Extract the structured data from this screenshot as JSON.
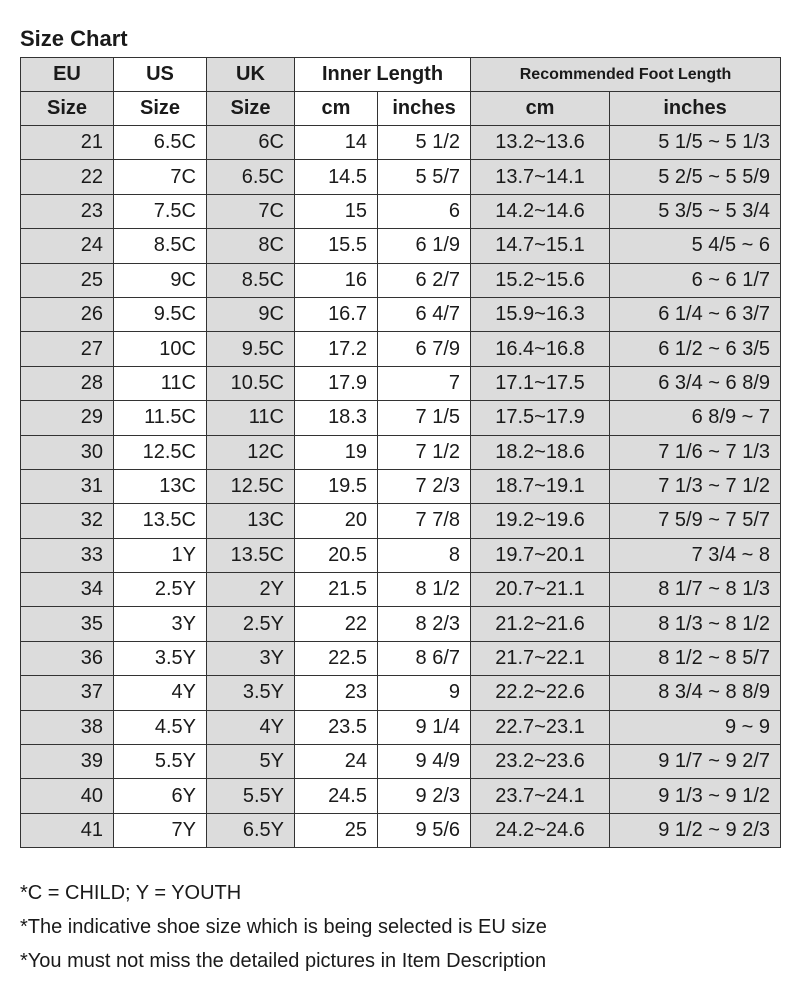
{
  "title": "Size Chart",
  "headers": {
    "eu": "EU",
    "us": "US",
    "uk": "UK",
    "size": "Size",
    "inner": "Inner Length",
    "recommended": "Recommended Foot Length",
    "cm": "cm",
    "inches": "inches"
  },
  "colors": {
    "shade": "#dcdcdc",
    "border": "#333333"
  },
  "rows": [
    [
      "21",
      "6.5C",
      "6C",
      "14",
      "5 1/2",
      "13.2~13.6",
      "5 1/5 ~ 5 1/3"
    ],
    [
      "22",
      "7C",
      "6.5C",
      "14.5",
      "5 5/7",
      "13.7~14.1",
      "5 2/5 ~ 5 5/9"
    ],
    [
      "23",
      "7.5C",
      "7C",
      "15",
      "6",
      "14.2~14.6",
      "5 3/5 ~ 5 3/4"
    ],
    [
      "24",
      "8.5C",
      "8C",
      "15.5",
      "6 1/9",
      "14.7~15.1",
      "5 4/5 ~ 6"
    ],
    [
      "25",
      "9C",
      "8.5C",
      "16",
      "6 2/7",
      "15.2~15.6",
      "6 ~ 6 1/7"
    ],
    [
      "26",
      "9.5C",
      "9C",
      "16.7",
      "6 4/7",
      "15.9~16.3",
      "6 1/4 ~ 6 3/7"
    ],
    [
      "27",
      "10C",
      "9.5C",
      "17.2",
      "6 7/9",
      "16.4~16.8",
      "6 1/2 ~ 6 3/5"
    ],
    [
      "28",
      "11C",
      "10.5C",
      "17.9",
      "7",
      "17.1~17.5",
      "6 3/4 ~ 6 8/9"
    ],
    [
      "29",
      "11.5C",
      "11C",
      "18.3",
      "7 1/5",
      "17.5~17.9",
      "6 8/9 ~ 7"
    ],
    [
      "30",
      "12.5C",
      "12C",
      "19",
      "7 1/2",
      "18.2~18.6",
      "7 1/6 ~ 7 1/3"
    ],
    [
      "31",
      "13C",
      "12.5C",
      "19.5",
      "7 2/3",
      "18.7~19.1",
      "7 1/3 ~ 7 1/2"
    ],
    [
      "32",
      "13.5C",
      "13C",
      "20",
      "7 7/8",
      "19.2~19.6",
      "7 5/9 ~ 7 5/7"
    ],
    [
      "33",
      "1Y",
      "13.5C",
      "20.5",
      "8",
      "19.7~20.1",
      "7 3/4 ~ 8"
    ],
    [
      "34",
      "2.5Y",
      "2Y",
      "21.5",
      "8 1/2",
      "20.7~21.1",
      "8 1/7 ~ 8 1/3"
    ],
    [
      "35",
      "3Y",
      "2.5Y",
      "22",
      "8 2/3",
      "21.2~21.6",
      "8 1/3 ~ 8 1/2"
    ],
    [
      "36",
      "3.5Y",
      "3Y",
      "22.5",
      "8 6/7",
      "21.7~22.1",
      "8 1/2 ~ 8 5/7"
    ],
    [
      "37",
      "4Y",
      "3.5Y",
      "23",
      "9",
      "22.2~22.6",
      "8 3/4 ~ 8 8/9"
    ],
    [
      "38",
      "4.5Y",
      "4Y",
      "23.5",
      "9 1/4",
      "22.7~23.1",
      "9 ~ 9"
    ],
    [
      "39",
      "5.5Y",
      "5Y",
      "24",
      "9 4/9",
      "23.2~23.6",
      "9 1/7 ~ 9 2/7"
    ],
    [
      "40",
      "6Y",
      "5.5Y",
      "24.5",
      "9 2/3",
      "23.7~24.1",
      "9 1/3 ~ 9 1/2"
    ],
    [
      "41",
      "7Y",
      "6.5Y",
      "25",
      "9 5/6",
      "24.2~24.6",
      "9 1/2 ~ 9 2/3"
    ]
  ],
  "notes": [
    "*C = CHILD; Y = YOUTH",
    "*The indicative shoe size which is being selected is EU size",
    "*You must not miss the detailed pictures in Item Description"
  ]
}
